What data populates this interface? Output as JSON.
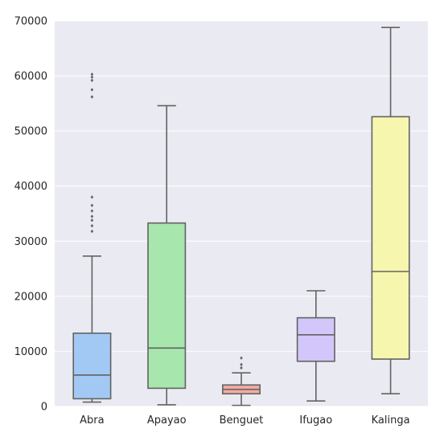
{
  "chart_data": {
    "type": "box",
    "categories": [
      "Abra",
      "Apayao",
      "Benguet",
      "Ifugao",
      "Kalinga"
    ],
    "ylim": [
      0,
      70000
    ],
    "yticks": [
      0,
      10000,
      20000,
      30000,
      40000,
      50000,
      60000,
      70000
    ],
    "ytick_labels": [
      "0",
      "10000",
      "20000",
      "30000",
      "40000",
      "50000",
      "60000",
      "70000"
    ],
    "grid": true,
    "title": "",
    "xlabel": "",
    "ylabel": "",
    "boxes": [
      {
        "category": "Abra",
        "color": "#a1c9f4",
        "whisker_low": 800,
        "q1": 1400,
        "median": 5700,
        "q3": 13300,
        "whisker_high": 27300,
        "outliers": [
          31800,
          32800,
          33800,
          34500,
          35500,
          36500,
          38000,
          56200,
          57500,
          59200,
          59800,
          60300
        ]
      },
      {
        "category": "Apayao",
        "color": "#a7e6ad",
        "whisker_low": 300,
        "q1": 3300,
        "median": 10600,
        "q3": 33300,
        "whisker_high": 54600,
        "outliers": []
      },
      {
        "category": "Benguet",
        "color": "#f2aaa2",
        "whisker_low": 200,
        "q1": 2300,
        "median": 3100,
        "q3": 3900,
        "whisker_high": 6100,
        "outliers": [
          7000,
          7600,
          8800
        ]
      },
      {
        "category": "Ifugao",
        "color": "#d2c6fb",
        "whisker_low": 1000,
        "q1": 8200,
        "median": 13000,
        "q3": 16100,
        "whisker_high": 21000,
        "outliers": []
      },
      {
        "category": "Kalinga",
        "color": "#f6f6ae",
        "whisker_low": 2300,
        "q1": 8600,
        "median": 24500,
        "q3": 52600,
        "whisker_high": 68800,
        "outliers": []
      }
    ],
    "colors": {
      "plot_background": "#eaeaf2",
      "grid": "#ffffff",
      "box_edge": "#636363",
      "text": "#262626"
    }
  }
}
